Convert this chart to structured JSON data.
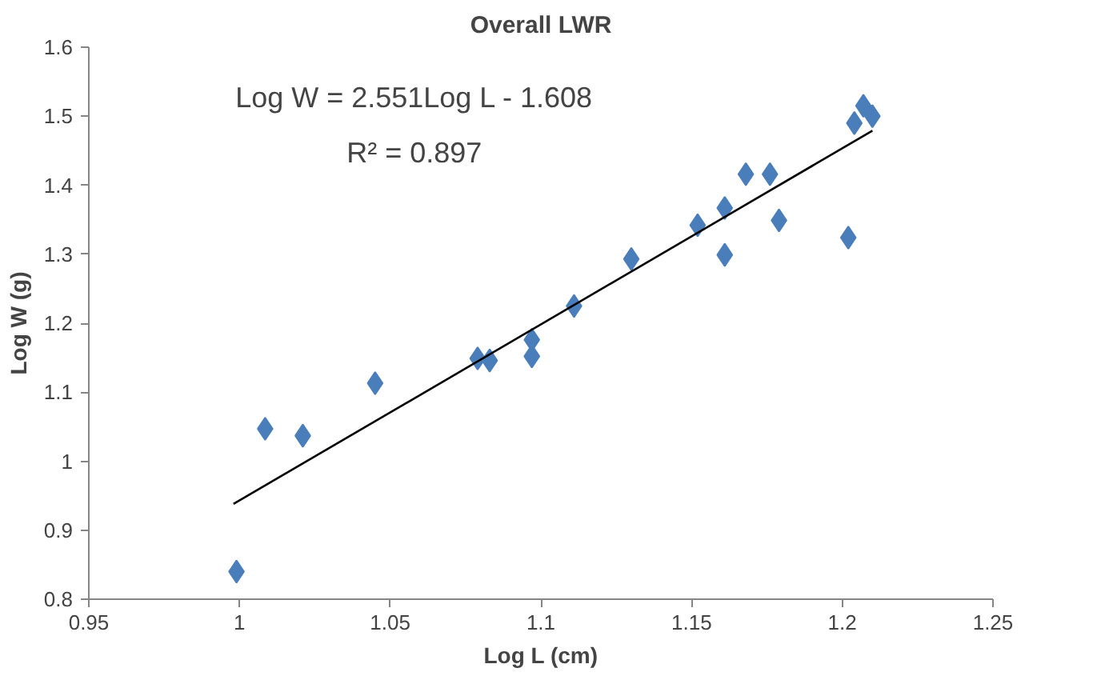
{
  "chart_data": {
    "type": "scatter",
    "title": "Overall LWR",
    "xlabel": "Log L (cm)",
    "ylabel": "Log W (g)",
    "annotations": [
      "Log W = 2.551Log L - 1.608",
      "R² = 0.897"
    ],
    "xlim": [
      0.95,
      1.25
    ],
    "xticks": [
      0.95,
      1,
      1.05,
      1.1,
      1.15,
      1.2,
      1.25
    ],
    "ylim": [
      0.8,
      1.6
    ],
    "yticks": [
      0.8,
      0.9,
      1,
      1.1,
      1.2,
      1.3,
      1.4,
      1.5,
      1.6
    ],
    "grid": false,
    "series": [
      {
        "marker": "diamond",
        "color": "#4a7ebb",
        "x": [
          0.999,
          1.0085,
          1.021,
          1.045,
          1.079,
          1.083,
          1.097,
          1.097,
          1.111,
          1.13,
          1.152,
          1.161,
          1.161,
          1.168,
          1.176,
          1.179,
          1.202,
          1.204,
          1.207,
          1.21
        ],
        "values": [
          0.84,
          1.047,
          1.037,
          1.113,
          1.149,
          1.146,
          1.176,
          1.152,
          1.225,
          1.293,
          1.342,
          1.367,
          1.299,
          1.416,
          1.416,
          1.349,
          1.324,
          1.49,
          1.515,
          1.5
        ]
      },
      {
        "type": "line",
        "color": "#000000",
        "x": [
          0.998,
          1.21
        ],
        "values": [
          0.938,
          1.479
        ]
      }
    ]
  }
}
